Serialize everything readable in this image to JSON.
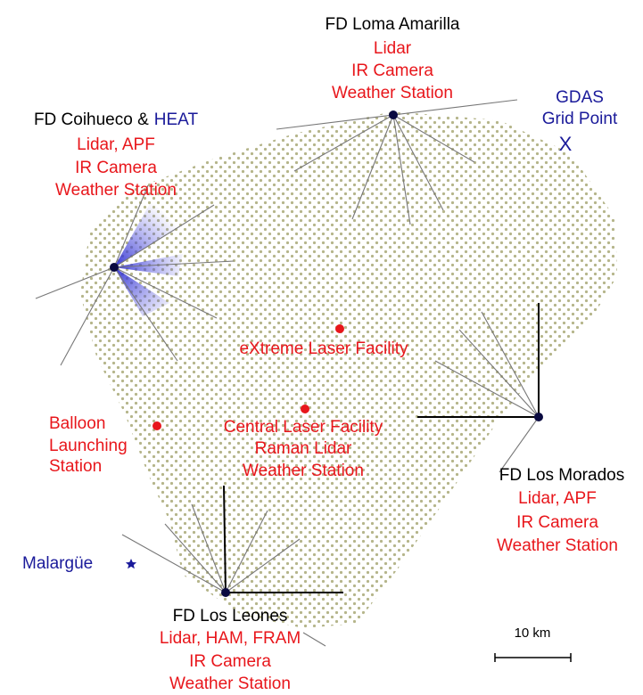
{
  "stations": [
    {
      "name": "FD Loma Amarilla",
      "instruments": [
        "Lidar",
        "IR Camera",
        "Weather Station"
      ]
    },
    {
      "name": "FD Coihueco &",
      "name_extra": "HEAT",
      "instruments": [
        "Lidar, APF",
        "IR Camera",
        "Weather Station"
      ]
    },
    {
      "name": "FD Los Morados",
      "instruments": [
        "Lidar, APF",
        "IR Camera",
        "Weather Station"
      ]
    },
    {
      "name": "FD Los Leones",
      "instruments": [
        "Lidar, HAM, FRAM",
        "IR Camera",
        "Weather Station"
      ]
    }
  ],
  "facilities": [
    {
      "lines": [
        "eXtreme Laser Facility"
      ]
    },
    {
      "lines": [
        "Central Laser Facility",
        "Raman Lidar",
        "Weather Station"
      ]
    },
    {
      "lines": [
        "Balloon",
        "Launching",
        "Station"
      ]
    }
  ],
  "gdas": {
    "lines": [
      "GDAS",
      "Grid Point"
    ],
    "marker": "X"
  },
  "town": "Malargüe",
  "scale_label": "10 km"
}
